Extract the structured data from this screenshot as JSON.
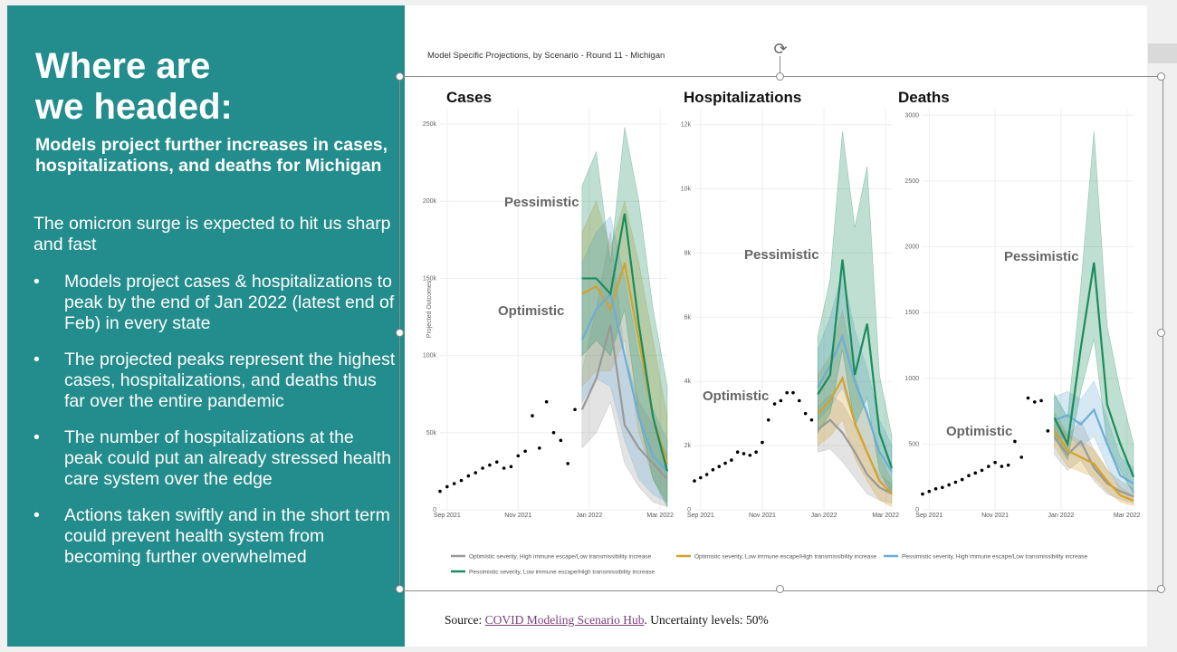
{
  "left": {
    "title_line1": "Where are",
    "title_line2": "we headed:",
    "subtitle": "Models project further increases in cases, hospitalizations, and deaths for Michigan",
    "intro": "The omicron surge is expected to hit us sharp and fast",
    "bullets": [
      "Models project cases & hospitalizations to peak by the end of Jan 2022 (latest end of Feb) in every state",
      "The projected peaks represent the highest cases, hospitalizations, and deaths thus far over the entire pandemic",
      "The number of hospitalizations at the peak could put an already stressed health care system over the edge",
      "Actions taken swiftly and in the short term could prevent health system from becoming further overwhelmed"
    ],
    "bullet_symbol": "•"
  },
  "figure": {
    "title": "Model Specific Projections, by Scenario - Round 11 - Michigan",
    "source_prefix": "Source: ",
    "source_link": "COVID Modeling Scenario Hub",
    "source_suffix": ". Uncertainty levels: 50%"
  },
  "colors": {
    "left_bg": "#238c8c",
    "gray_series": "#999999",
    "orange_series": "#d4a22c",
    "blue_series": "#6baed6",
    "green_series": "#1a8c5c",
    "observed": "#000000"
  },
  "chart_data": [
    {
      "type": "line",
      "title": "Cases",
      "ylabel": "Projected Outcomes",
      "ylim": [
        0,
        260000
      ],
      "yticks": [
        0,
        50000,
        100000,
        150000,
        200000,
        250000
      ],
      "ytick_labels": [
        "0",
        "50k",
        "100k",
        "150k",
        "200k",
        "250k"
      ],
      "xticks": [
        "Sep 2021",
        "Nov 2021",
        "Jan 2022",
        "Mar 2022"
      ],
      "annotations": [
        "Pessimistic",
        "Optimistic"
      ],
      "observed": [
        [
          0.0,
          12000
        ],
        [
          0.1,
          15000
        ],
        [
          0.2,
          17000
        ],
        [
          0.3,
          19000
        ],
        [
          0.4,
          22000
        ],
        [
          0.5,
          24000
        ],
        [
          0.6,
          27000
        ],
        [
          0.7,
          29000
        ],
        [
          0.8,
          31000
        ],
        [
          0.9,
          27000
        ],
        [
          1.0,
          28000
        ],
        [
          1.1,
          35000
        ],
        [
          1.2,
          38000
        ],
        [
          1.3,
          61000
        ],
        [
          1.4,
          40000
        ],
        [
          1.5,
          70000
        ],
        [
          1.6,
          50000
        ],
        [
          1.7,
          45000
        ],
        [
          1.8,
          30000
        ],
        [
          1.9,
          65000
        ]
      ],
      "series": [
        {
          "name": "Optimistic severity, High immune escape/Low transmissibility increase",
          "x": [
            2.0,
            2.2,
            2.4,
            2.6,
            2.8,
            3.0,
            3.2
          ],
          "values": [
            65000,
            85000,
            120000,
            55000,
            40000,
            30000,
            20000
          ],
          "lower": [
            40000,
            50000,
            70000,
            30000,
            15000,
            5000,
            2000
          ],
          "upper": [
            90000,
            130000,
            180000,
            100000,
            70000,
            55000,
            35000
          ]
        },
        {
          "name": "Optimistic severity, Low immune escape/High transmissibility increase",
          "x": [
            2.0,
            2.2,
            2.4,
            2.6,
            2.8,
            3.0,
            3.2
          ],
          "values": [
            140000,
            145000,
            130000,
            160000,
            110000,
            60000,
            30000
          ],
          "lower": [
            80000,
            90000,
            90000,
            110000,
            50000,
            20000,
            5000
          ],
          "upper": [
            180000,
            200000,
            170000,
            200000,
            160000,
            110000,
            60000
          ]
        },
        {
          "name": "Pessimistic severity, High immune escape/Low transmissibility increase",
          "x": [
            2.0,
            2.2,
            2.4,
            2.6,
            2.8,
            3.0,
            3.2
          ],
          "values": [
            110000,
            130000,
            140000,
            100000,
            60000,
            35000,
            25000
          ],
          "lower": [
            70000,
            85000,
            80000,
            45000,
            20000,
            10000,
            5000
          ],
          "upper": [
            160000,
            180000,
            190000,
            150000,
            100000,
            65000,
            45000
          ]
        },
        {
          "name": "Pessimistic severity, Low immune escape/High transmissibility increase",
          "x": [
            2.0,
            2.2,
            2.4,
            2.6,
            2.8,
            3.0,
            3.2
          ],
          "values": [
            150000,
            150000,
            140000,
            192000,
            120000,
            60000,
            25000
          ],
          "lower": [
            100000,
            110000,
            100000,
            130000,
            60000,
            20000,
            2000
          ],
          "upper": [
            210000,
            232000,
            160000,
            248000,
            200000,
            130000,
            80000
          ]
        }
      ],
      "legend": "bottom"
    },
    {
      "type": "line",
      "title": "Hospitalizations",
      "ylim": [
        0,
        12500
      ],
      "yticks": [
        0,
        2000,
        4000,
        6000,
        8000,
        10000,
        12000
      ],
      "ytick_labels": [
        "0",
        "2k",
        "4k",
        "6k",
        "8k",
        "10k",
        "12k"
      ],
      "xticks": [
        "Sep 2021",
        "Nov 2021",
        "Jan 2022",
        "Mar 2022"
      ],
      "annotations": [
        "Pessimistic",
        "Optimistic"
      ],
      "observed": [
        [
          0.0,
          900
        ],
        [
          0.1,
          1000
        ],
        [
          0.2,
          1100
        ],
        [
          0.3,
          1250
        ],
        [
          0.4,
          1350
        ],
        [
          0.5,
          1450
        ],
        [
          0.6,
          1550
        ],
        [
          0.7,
          1800
        ],
        [
          0.8,
          1750
        ],
        [
          0.9,
          1700
        ],
        [
          1.0,
          1800
        ],
        [
          1.1,
          2100
        ],
        [
          1.2,
          2800
        ],
        [
          1.3,
          3300
        ],
        [
          1.4,
          3400
        ],
        [
          1.5,
          3650
        ],
        [
          1.6,
          3650
        ],
        [
          1.7,
          3400
        ],
        [
          1.8,
          3000
        ],
        [
          1.9,
          2800
        ]
      ],
      "series": [
        {
          "name": "Optimistic severity, High immune escape/Low transmissibility increase",
          "x": [
            2.0,
            2.2,
            2.4,
            2.6,
            2.8,
            3.0,
            3.2
          ],
          "values": [
            2500,
            2800,
            2400,
            1800,
            1100,
            700,
            500
          ],
          "lower": [
            1800,
            1900,
            1500,
            1000,
            500,
            300,
            200
          ],
          "upper": [
            3200,
            3600,
            3300,
            2600,
            1700,
            1100,
            800
          ]
        },
        {
          "name": "Optimistic severity, Low immune escape/High transmissibility increase",
          "x": [
            2.0,
            2.2,
            2.4,
            2.6,
            2.8,
            3.0,
            3.2
          ],
          "values": [
            3000,
            3400,
            4100,
            2700,
            1800,
            900,
            500
          ],
          "lower": [
            2000,
            2300,
            2800,
            1600,
            900,
            300,
            100
          ],
          "upper": [
            4200,
            4800,
            6200,
            4200,
            2900,
            1700,
            900
          ]
        },
        {
          "name": "Pessimistic severity, High immune escape/Low transmissibility increase",
          "x": [
            2.0,
            2.2,
            2.4,
            2.6,
            2.8,
            3.0,
            3.2
          ],
          "values": [
            3800,
            4500,
            5400,
            4000,
            3000,
            1800,
            1200
          ],
          "lower": [
            2800,
            3200,
            3800,
            2700,
            1800,
            900,
            500
          ],
          "upper": [
            5000,
            6000,
            7400,
            5600,
            4400,
            2800,
            2000
          ]
        },
        {
          "name": "Pessimistic severity, Low immune escape/High transmissibility increase",
          "x": [
            2.0,
            2.2,
            2.4,
            2.6,
            2.8,
            3.0,
            3.2
          ],
          "values": [
            3600,
            4200,
            7800,
            4200,
            5800,
            2400,
            1300
          ],
          "lower": [
            2400,
            3000,
            5000,
            2600,
            3500,
            1200,
            500
          ],
          "upper": [
            5400,
            7200,
            11800,
            8800,
            10700,
            4200,
            2300
          ]
        }
      ],
      "legend": "bottom"
    },
    {
      "type": "line",
      "title": "Deaths",
      "ylim": [
        0,
        3050
      ],
      "yticks": [
        0,
        500,
        1000,
        1500,
        2000,
        2500,
        3000
      ],
      "ytick_labels": [
        "0",
        "500",
        "1000",
        "1500",
        "2000",
        "2500",
        "3000"
      ],
      "xticks": [
        "Sep 2021",
        "Nov 2021",
        "Jan 2022",
        "Mar 2022"
      ],
      "annotations": [
        "Pessimistic",
        "Optimistic"
      ],
      "observed": [
        [
          0.0,
          120
        ],
        [
          0.1,
          140
        ],
        [
          0.2,
          160
        ],
        [
          0.3,
          170
        ],
        [
          0.4,
          190
        ],
        [
          0.5,
          210
        ],
        [
          0.6,
          230
        ],
        [
          0.7,
          260
        ],
        [
          0.8,
          280
        ],
        [
          0.9,
          300
        ],
        [
          1.0,
          330
        ],
        [
          1.1,
          360
        ],
        [
          1.2,
          330
        ],
        [
          1.3,
          340
        ],
        [
          1.4,
          520
        ],
        [
          1.5,
          400
        ],
        [
          1.6,
          850
        ],
        [
          1.7,
          820
        ],
        [
          1.8,
          830
        ],
        [
          1.9,
          600
        ]
      ],
      "series": [
        {
          "name": "Optimistic severity, High immune escape/Low transmissibility increase",
          "x": [
            2.0,
            2.2,
            2.4,
            2.6,
            2.8,
            3.0,
            3.2
          ],
          "values": [
            550,
            420,
            520,
            320,
            200,
            140,
            100
          ],
          "lower": [
            420,
            300,
            380,
            220,
            120,
            80,
            50
          ],
          "upper": [
            700,
            560,
            680,
            450,
            300,
            220,
            160
          ]
        },
        {
          "name": "Optimistic severity, Low immune escape/High transmissibility increase",
          "x": [
            2.0,
            2.2,
            2.4,
            2.6,
            2.8,
            3.0,
            3.2
          ],
          "values": [
            600,
            450,
            400,
            350,
            220,
            110,
            70
          ],
          "lower": [
            480,
            330,
            290,
            250,
            140,
            60,
            30
          ],
          "upper": [
            740,
            580,
            520,
            460,
            310,
            170,
            110
          ]
        },
        {
          "name": "Pessimistic severity, High immune escape/Low transmissibility increase",
          "x": [
            2.0,
            2.2,
            2.4,
            2.6,
            2.8,
            3.0,
            3.2
          ],
          "values": [
            680,
            720,
            650,
            760,
            500,
            260,
            200
          ],
          "lower": [
            520,
            560,
            480,
            560,
            330,
            150,
            100
          ],
          "upper": [
            860,
            900,
            840,
            980,
            700,
            400,
            320
          ]
        },
        {
          "name": "Pessimistic severity, Low immune escape/High transmissibility increase",
          "x": [
            2.0,
            2.2,
            2.4,
            2.6,
            2.8,
            3.0,
            3.2
          ],
          "values": [
            700,
            500,
            1230,
            1880,
            800,
            500,
            250
          ],
          "lower": [
            550,
            380,
            900,
            1300,
            500,
            300,
            120
          ],
          "upper": [
            880,
            700,
            1700,
            2880,
            1400,
            900,
            500
          ]
        }
      ],
      "legend": "bottom"
    }
  ]
}
